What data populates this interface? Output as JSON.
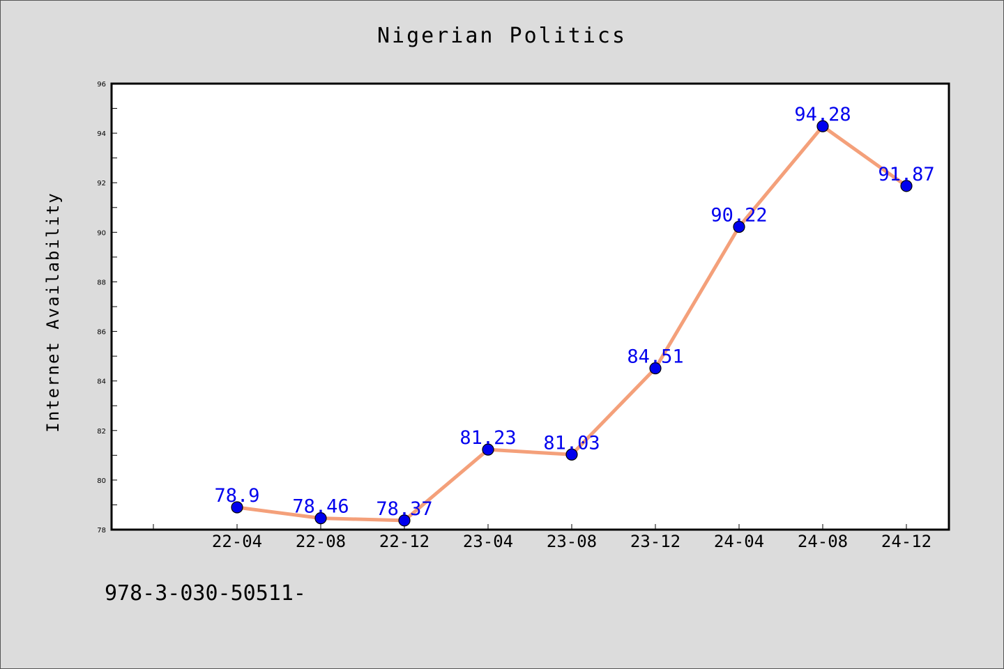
{
  "chart_data": {
    "type": "line",
    "title": "Nigerian Politics",
    "xlabel": "",
    "ylabel": "Internet Availability",
    "categories": [
      "22-04",
      "22-08",
      "22-12",
      "23-04",
      "23-08",
      "23-12",
      "24-04",
      "24-08",
      "24-12"
    ],
    "values": [
      78.9,
      78.46,
      78.37,
      81.23,
      81.03,
      84.51,
      90.22,
      94.28,
      91.87
    ],
    "data_labels": [
      "78.9",
      "78.46",
      "78.37",
      "81.23",
      "81.03",
      "84.51",
      "90.22",
      "94.28",
      "91.87"
    ],
    "ylim": [
      78,
      96
    ],
    "yticks": [
      78,
      80,
      82,
      84,
      86,
      88,
      90,
      92,
      94,
      96
    ],
    "grid": false,
    "line_color": "#f4a07a",
    "marker_color": "#0000ee",
    "label_color": "#0000ee"
  },
  "footnote": "978-3-030-50511-"
}
